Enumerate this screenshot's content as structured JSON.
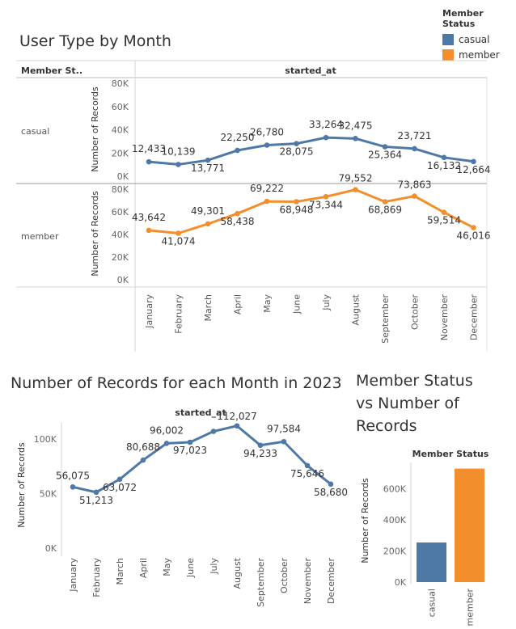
{
  "legend": {
    "title": "Member Status",
    "items": [
      {
        "label": "casual",
        "color": "#4e79a7"
      },
      {
        "label": "member",
        "color": "#f28e2b"
      }
    ]
  },
  "titles": {
    "chart1": "User Type by Month",
    "chart2": "Number of Records for each Month in 2023",
    "chart3": [
      "Member Status",
      "vs Number of",
      "Records"
    ]
  },
  "chart_data": [
    {
      "type": "line",
      "title": "User Type by Month",
      "row_header": "Member St..",
      "column_header": "started_at",
      "categories": [
        "January",
        "February",
        "March",
        "April",
        "May",
        "June",
        "July",
        "August",
        "September",
        "October",
        "November",
        "December"
      ],
      "ylabel": "Number of Records",
      "ylim": [
        0,
        80000
      ],
      "yticks": [
        "80K",
        "60K",
        "40K",
        "20K",
        "0K"
      ],
      "yticks_casual": [
        "80K",
        "60K",
        "40K",
        "20K",
        "0K"
      ],
      "yticks_member": [
        "80K",
        "60K",
        "40K",
        "20K",
        "0K"
      ],
      "series": [
        {
          "name": "casual",
          "color": "#4e79a7",
          "values": [
            12433,
            10139,
            13771,
            22250,
            26780,
            28075,
            33264,
            32475,
            25364,
            23721,
            16132,
            12664
          ],
          "labels": [
            "12,433",
            "10,139",
            "13,771",
            "22,250",
            "26,780",
            "28,075",
            "33,264",
            "32,475",
            "25,364",
            "23,721",
            "16,132",
            "12,664"
          ]
        },
        {
          "name": "member",
          "color": "#f28e2b",
          "values": [
            43642,
            41074,
            49301,
            58438,
            69222,
            68948,
            73344,
            79552,
            68869,
            73863,
            59514,
            46016
          ],
          "labels": [
            "43,642",
            "41,074",
            "49,301",
            "58,438",
            "69,222",
            "68,948",
            "73,344",
            "79,552",
            "68,869",
            "73,863",
            "59,514",
            "46,016"
          ]
        }
      ]
    },
    {
      "type": "line",
      "title": "Number of Records for each Month in 2023",
      "column_header": "started_at",
      "categories": [
        "January",
        "February",
        "March",
        "April",
        "May",
        "June",
        "July",
        "August",
        "September",
        "October",
        "November",
        "December"
      ],
      "ylabel": "Number of Records",
      "ylim": [
        0,
        120000
      ],
      "yticks": [
        "100K",
        "50K",
        "0K"
      ],
      "values": [
        56075,
        51213,
        63072,
        80688,
        96002,
        97023,
        107000,
        112027,
        94233,
        97584,
        75646,
        58680
      ],
      "labels": [
        "56,075",
        "51,213",
        "63,072",
        "80,688",
        "96,002",
        "97,023",
        "",
        "112,027",
        "94,233",
        "97,584",
        "75,646",
        "58,680"
      ],
      "color": "#4e79a7"
    },
    {
      "type": "bar",
      "title": "Member Status vs Number of Records",
      "column_header": "Member Status",
      "categories": [
        "casual",
        "member"
      ],
      "values": [
        255000,
        730000
      ],
      "colors": [
        "#4e79a7",
        "#f28e2b"
      ],
      "ylabel": "Number of Records",
      "ylim": [
        0,
        780000
      ],
      "yticks": [
        "600K",
        "400K",
        "200K",
        "0K"
      ]
    }
  ]
}
